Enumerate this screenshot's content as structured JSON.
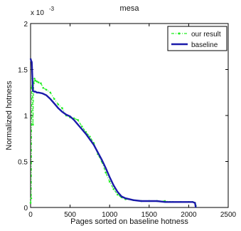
{
  "chart_data": {
    "type": "line",
    "title": "mesa",
    "xlabel": "Pages sorted on baseline hotness",
    "ylabel": "Normalized hotness",
    "y_exponent_label": "x 10",
    "y_exponent_power": "-3",
    "xlim": [
      0,
      2500
    ],
    "ylim": [
      0,
      2.0
    ],
    "xticks": [
      0,
      500,
      1000,
      1500,
      2000,
      2500
    ],
    "xtick_labels": [
      "0",
      "500",
      "1000",
      "1500",
      "2000",
      "2500"
    ],
    "yticks": [
      0,
      0.5,
      1,
      1.5,
      2
    ],
    "ytick_labels": [
      "0",
      "0.5",
      "1",
      "1.5",
      "2"
    ],
    "grid": false,
    "legend_position": "top-right",
    "series": [
      {
        "name": "our result",
        "color": "#22ee22",
        "style": "dash-dot with point markers",
        "x": [
          0,
          8,
          15,
          22,
          30,
          40,
          50,
          60,
          80,
          100,
          130,
          160,
          200,
          250,
          300,
          350,
          400,
          450,
          500,
          550,
          600,
          650,
          700,
          750,
          800,
          850,
          900,
          950,
          1000,
          1050,
          1100,
          1150,
          1200,
          1300,
          1400,
          1500,
          1600,
          1700,
          1800,
          1900,
          2000,
          2050,
          2080,
          2090
        ],
        "y": [
          0.05,
          0.1,
          1.3,
          1.4,
          0.9,
          1.35,
          1.4,
          1.38,
          1.37,
          1.36,
          1.35,
          1.3,
          1.28,
          1.25,
          1.18,
          1.12,
          1.08,
          1.0,
          0.98,
          0.97,
          0.95,
          0.88,
          0.82,
          0.77,
          0.7,
          0.58,
          0.5,
          0.38,
          0.28,
          0.2,
          0.14,
          0.11,
          0.09,
          0.08,
          0.07,
          0.07,
          0.07,
          0.07,
          0.06,
          0.06,
          0.06,
          0.06,
          0.05,
          0.02
        ]
      },
      {
        "name": "baseline",
        "color": "#1a1aaa",
        "style": "solid",
        "x": [
          0,
          5,
          15,
          30,
          45,
          60,
          80,
          100,
          150,
          200,
          250,
          300,
          350,
          400,
          450,
          500,
          550,
          600,
          650,
          700,
          750,
          800,
          850,
          900,
          950,
          1000,
          1050,
          1100,
          1150,
          1200,
          1300,
          1400,
          1500,
          1600,
          1700,
          1800,
          1900,
          2000,
          2050,
          2080,
          2090
        ],
        "y": [
          1.62,
          1.6,
          1.58,
          1.27,
          1.26,
          1.26,
          1.25,
          1.25,
          1.24,
          1.22,
          1.18,
          1.13,
          1.08,
          1.04,
          1.01,
          0.99,
          0.95,
          0.9,
          0.85,
          0.8,
          0.74,
          0.68,
          0.6,
          0.52,
          0.43,
          0.33,
          0.24,
          0.17,
          0.12,
          0.1,
          0.08,
          0.07,
          0.07,
          0.07,
          0.06,
          0.06,
          0.06,
          0.06,
          0.06,
          0.05,
          0.0
        ]
      }
    ]
  }
}
